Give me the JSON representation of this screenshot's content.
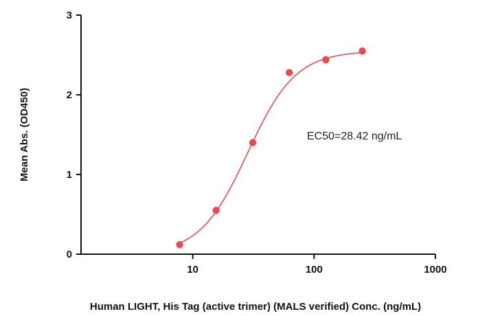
{
  "chart_data": {
    "type": "scatter",
    "xlabel": "Human LIGHT, His Tag (active trimer) (MALS verified) Conc. (ng/mL)",
    "ylabel": "Mean Abs. (OD450)",
    "x_scale": "log",
    "xlim": [
      1.2,
      1000
    ],
    "ylim": [
      0,
      3
    ],
    "x_ticks": [
      10,
      100,
      1000
    ],
    "x_tick_labels": [
      "10",
      "100",
      "1000"
    ],
    "y_ticks": [
      0,
      1,
      2,
      3
    ],
    "y_tick_labels": [
      "0",
      "1",
      "2",
      "3"
    ],
    "grid": false,
    "series": [
      {
        "color": "#f0474f",
        "x": [
          7.8,
          15.6,
          31.25,
          62.5,
          125,
          250
        ],
        "y": [
          0.12,
          0.55,
          1.4,
          2.28,
          2.44,
          2.55
        ]
      }
    ],
    "fit_curve": {
      "color": "#f0474f",
      "bottom": 0.0,
      "top": 2.55,
      "ec50": 28.42,
      "hill": 2.2,
      "x_range": [
        7.8,
        250
      ]
    },
    "annotation": "EC50=28.42 ng/mL"
  }
}
